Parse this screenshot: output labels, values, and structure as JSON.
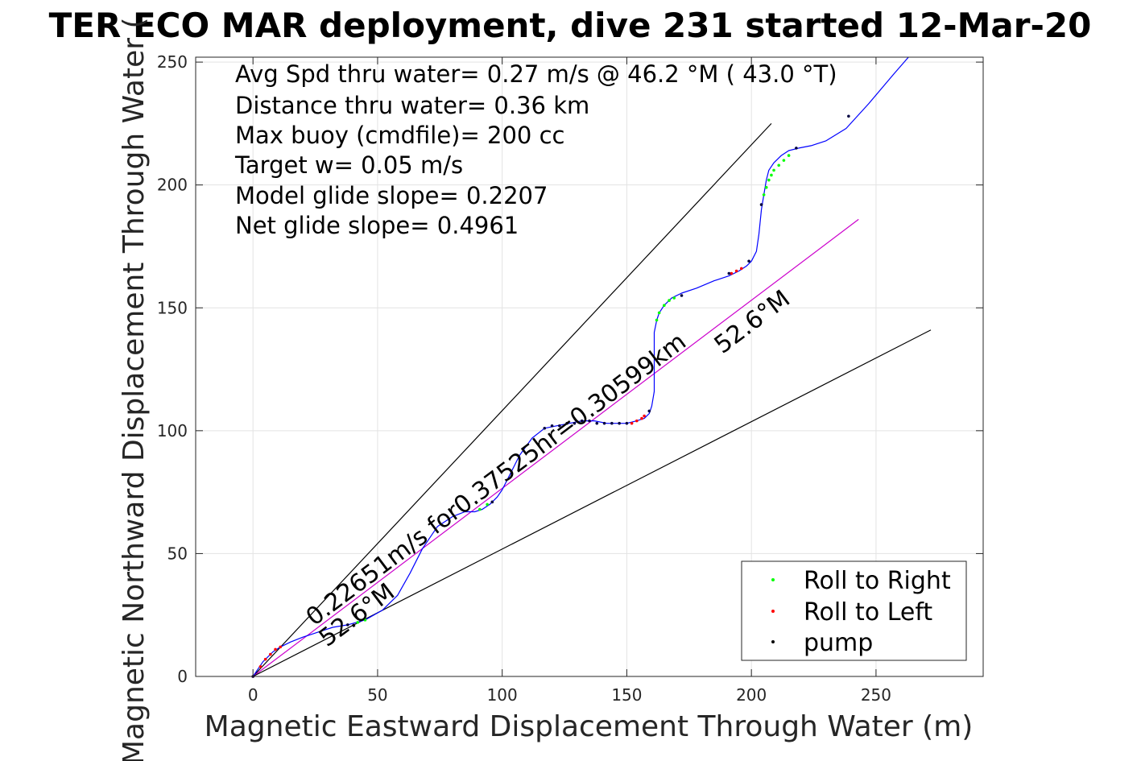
{
  "title": "TER ECO MAR deployment, dive 231 started 12-Mar-20",
  "chart_data": {
    "type": "line",
    "title": "TER ECO MAR deployment, dive 231 started 12-Mar-20",
    "xlabel": "Magnetic Eastward Displacement Through Water (m)",
    "ylabel": "Magnetic Northward Displacement Through Water (",
    "xlim": [
      -23,
      293
    ],
    "ylim": [
      0,
      252
    ],
    "xticks": [
      0,
      50,
      100,
      150,
      200,
      250
    ],
    "yticks": [
      0,
      50,
      100,
      150,
      200,
      250
    ],
    "grid": true,
    "legend_position": "bottom-right",
    "annotations": [
      "Avg Spd thru water=  0.27 m/s @  46.2 °M ( 43.0 °T)",
      "Distance thru water=  0.36 km",
      "Max buoy (cmdfile)= 200 cc",
      "Target w= 0.05 m/s",
      "Model glide slope= 0.2207",
      "Net glide slope= 0.4961"
    ],
    "plot_labels": {
      "track_summary": "0.22651m/s for0.37525hr=0.30599km",
      "heading_upper": "52.6°M",
      "heading_lower": "52.6°M"
    },
    "legend": [
      {
        "label": "Roll to Right",
        "color": "#00ff00"
      },
      {
        "label": "Roll to Left",
        "color": "#ff0000"
      },
      {
        "label": "pump",
        "color": "#000000"
      }
    ],
    "reference_lines": [
      {
        "name": "upper-bound",
        "color": "#000000",
        "x": [
          0,
          208
        ],
        "y": [
          0,
          225
        ]
      },
      {
        "name": "heading-line",
        "color": "#cc00cc",
        "x": [
          0,
          243
        ],
        "y": [
          0,
          186
        ]
      },
      {
        "name": "lower-bound",
        "color": "#000000",
        "x": [
          0,
          272
        ],
        "y": [
          0,
          141
        ]
      }
    ],
    "track": {
      "color": "#0000ff",
      "x": [
        0,
        2,
        4,
        6,
        8,
        11,
        15,
        20,
        26,
        32,
        38,
        45,
        52,
        58,
        63,
        68,
        74,
        80,
        85,
        89,
        92,
        95,
        98,
        100,
        103,
        107,
        112,
        117,
        122,
        127,
        132,
        137,
        142,
        146,
        150,
        154,
        157,
        159,
        160,
        161,
        161,
        161,
        161,
        162,
        163,
        165,
        168,
        172,
        178,
        185,
        191,
        195,
        198,
        200,
        202,
        203,
        204,
        205,
        206,
        207,
        209,
        212,
        215,
        219,
        224,
        230,
        238,
        247,
        257,
        263
      ],
      "y": [
        0,
        3,
        6,
        8,
        10,
        12,
        14,
        16,
        18,
        20,
        21,
        23,
        27,
        33,
        42,
        52,
        61,
        65,
        67,
        67,
        68,
        70,
        73,
        76,
        82,
        90,
        97,
        101,
        102,
        103,
        104,
        104,
        103,
        103,
        103,
        104,
        105,
        107,
        110,
        116,
        125,
        133,
        140,
        145,
        148,
        151,
        154,
        156,
        158,
        161,
        163,
        165,
        167,
        169,
        173,
        180,
        190,
        196,
        202,
        206,
        209,
        212,
        214,
        215,
        216,
        218,
        223,
        233,
        245,
        252
      ]
    },
    "roll_right_points": {
      "x": [
        42,
        45,
        91,
        94,
        162,
        163,
        165,
        167,
        169,
        205,
        206,
        207,
        208,
        209,
        211,
        213,
        215
      ],
      "y": [
        22,
        23,
        68,
        70,
        145,
        148,
        151,
        153,
        154,
        196,
        199,
        202,
        204,
        206,
        208,
        210,
        212
      ]
    },
    "roll_left_points": {
      "x": [
        0,
        3,
        5,
        7,
        9,
        11,
        152,
        154,
        156,
        157,
        192,
        194,
        196
      ],
      "y": [
        0,
        4,
        7,
        9,
        11,
        12,
        103,
        104,
        105,
        106,
        164,
        165,
        166
      ]
    },
    "pump_points": {
      "x": [
        0,
        38,
        96,
        117,
        120,
        123,
        126,
        129,
        132,
        135,
        138,
        141,
        144,
        147,
        150,
        159,
        172,
        191,
        199,
        204,
        218,
        239
      ],
      "y": [
        0,
        21,
        71,
        101,
        102,
        102,
        103,
        103,
        104,
        104,
        103,
        103,
        103,
        103,
        103,
        108,
        155,
        164,
        169,
        192,
        215,
        228
      ]
    }
  }
}
